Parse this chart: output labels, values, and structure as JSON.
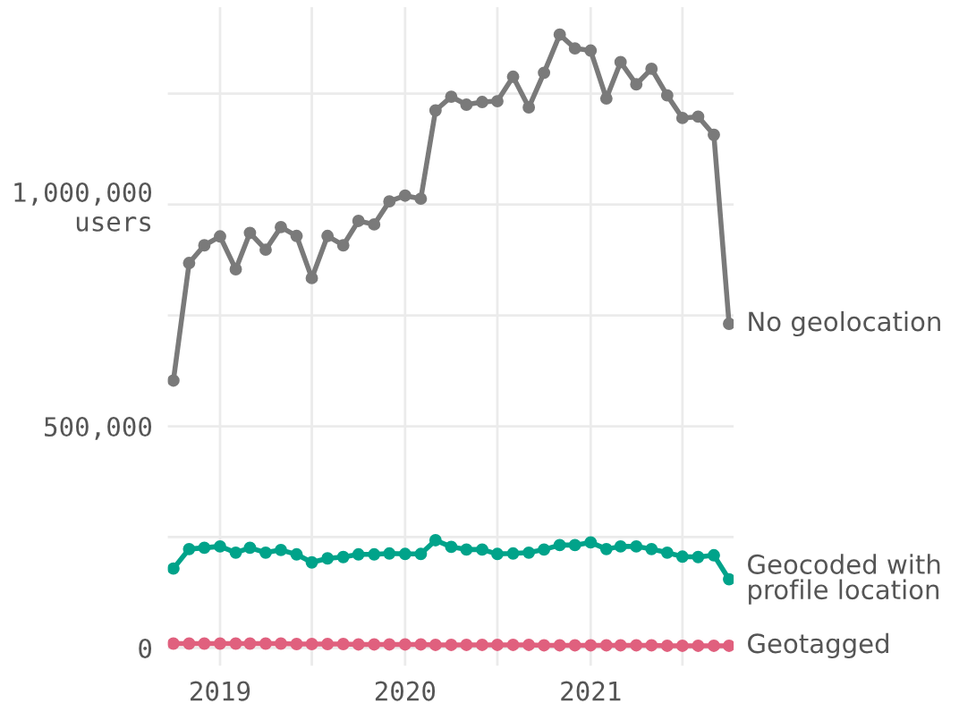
{
  "chart_data": {
    "type": "line",
    "x": [
      "2018-10",
      "2018-11",
      "2018-12",
      "2019-01",
      "2019-02",
      "2019-03",
      "2019-04",
      "2019-05",
      "2019-06",
      "2019-07",
      "2019-08",
      "2019-09",
      "2019-10",
      "2019-11",
      "2019-12",
      "2020-01",
      "2020-02",
      "2020-03",
      "2020-04",
      "2020-05",
      "2020-06",
      "2020-07",
      "2020-08",
      "2020-09",
      "2020-10",
      "2020-11",
      "2020-12",
      "2021-01",
      "2021-02",
      "2021-03",
      "2021-04",
      "2021-05",
      "2021-06",
      "2021-07",
      "2021-08",
      "2021-09",
      "2021-10"
    ],
    "series": [
      {
        "name": "No geolocation",
        "color": "#7a7a7a",
        "values": [
          603000,
          868000,
          908000,
          928000,
          854000,
          936000,
          898000,
          949000,
          929000,
          834000,
          929000,
          908000,
          963000,
          955000,
          1007000,
          1020000,
          1013000,
          1212000,
          1243000,
          1225000,
          1231000,
          1233000,
          1288000,
          1219000,
          1297000,
          1383000,
          1352000,
          1347000,
          1239000,
          1321000,
          1271000,
          1306000,
          1246000,
          1195000,
          1198000,
          1157000,
          731000
        ]
      },
      {
        "name": "Geocoded with\nprofile location",
        "color": "#00a38a",
        "values": [
          179000,
          223000,
          226000,
          229000,
          215000,
          226000,
          215000,
          221000,
          211000,
          193000,
          202000,
          205000,
          211000,
          211000,
          213000,
          212000,
          212000,
          243000,
          228000,
          222000,
          222000,
          212000,
          213000,
          215000,
          222000,
          232000,
          232000,
          238000,
          223000,
          229000,
          229000,
          223000,
          215000,
          206000,
          205000,
          209000,
          155000
        ]
      },
      {
        "name": "Geotagged",
        "color": "#e0607e",
        "values": [
          10000,
          10000,
          10000,
          10000,
          10000,
          10000,
          10000,
          10000,
          9000,
          9000,
          9000,
          9000,
          8000,
          8000,
          8000,
          8000,
          8000,
          7000,
          7000,
          7000,
          7000,
          7000,
          7000,
          7000,
          6000,
          6000,
          6000,
          6000,
          6000,
          6000,
          6000,
          6000,
          5000,
          5000,
          5000,
          5000,
          5000
        ]
      }
    ],
    "xlim": [
      "2018-09-20",
      "2021-10-10"
    ],
    "xticks": [
      {
        "value": "2019-01",
        "label": "2019"
      },
      {
        "value": "2019-07",
        "label": null
      },
      {
        "value": "2020-01",
        "label": "2020"
      },
      {
        "value": "2020-07",
        "label": null
      },
      {
        "value": "2021-01",
        "label": "2021"
      },
      {
        "value": "2021-07",
        "label": null
      }
    ],
    "ylim": [
      -40000,
      1445000
    ],
    "yticks": [
      0,
      {
        "value": 250000,
        "label": null
      },
      {
        "value": 500000,
        "label": "500,000"
      },
      {
        "value": 750000,
        "label": null
      },
      {
        "value": 1000000,
        "label": "1,000,000\nusers"
      },
      {
        "value": 1250000,
        "label": null
      }
    ],
    "grid": true,
    "legend": false,
    "marker": "circle",
    "line_style": "solid"
  }
}
